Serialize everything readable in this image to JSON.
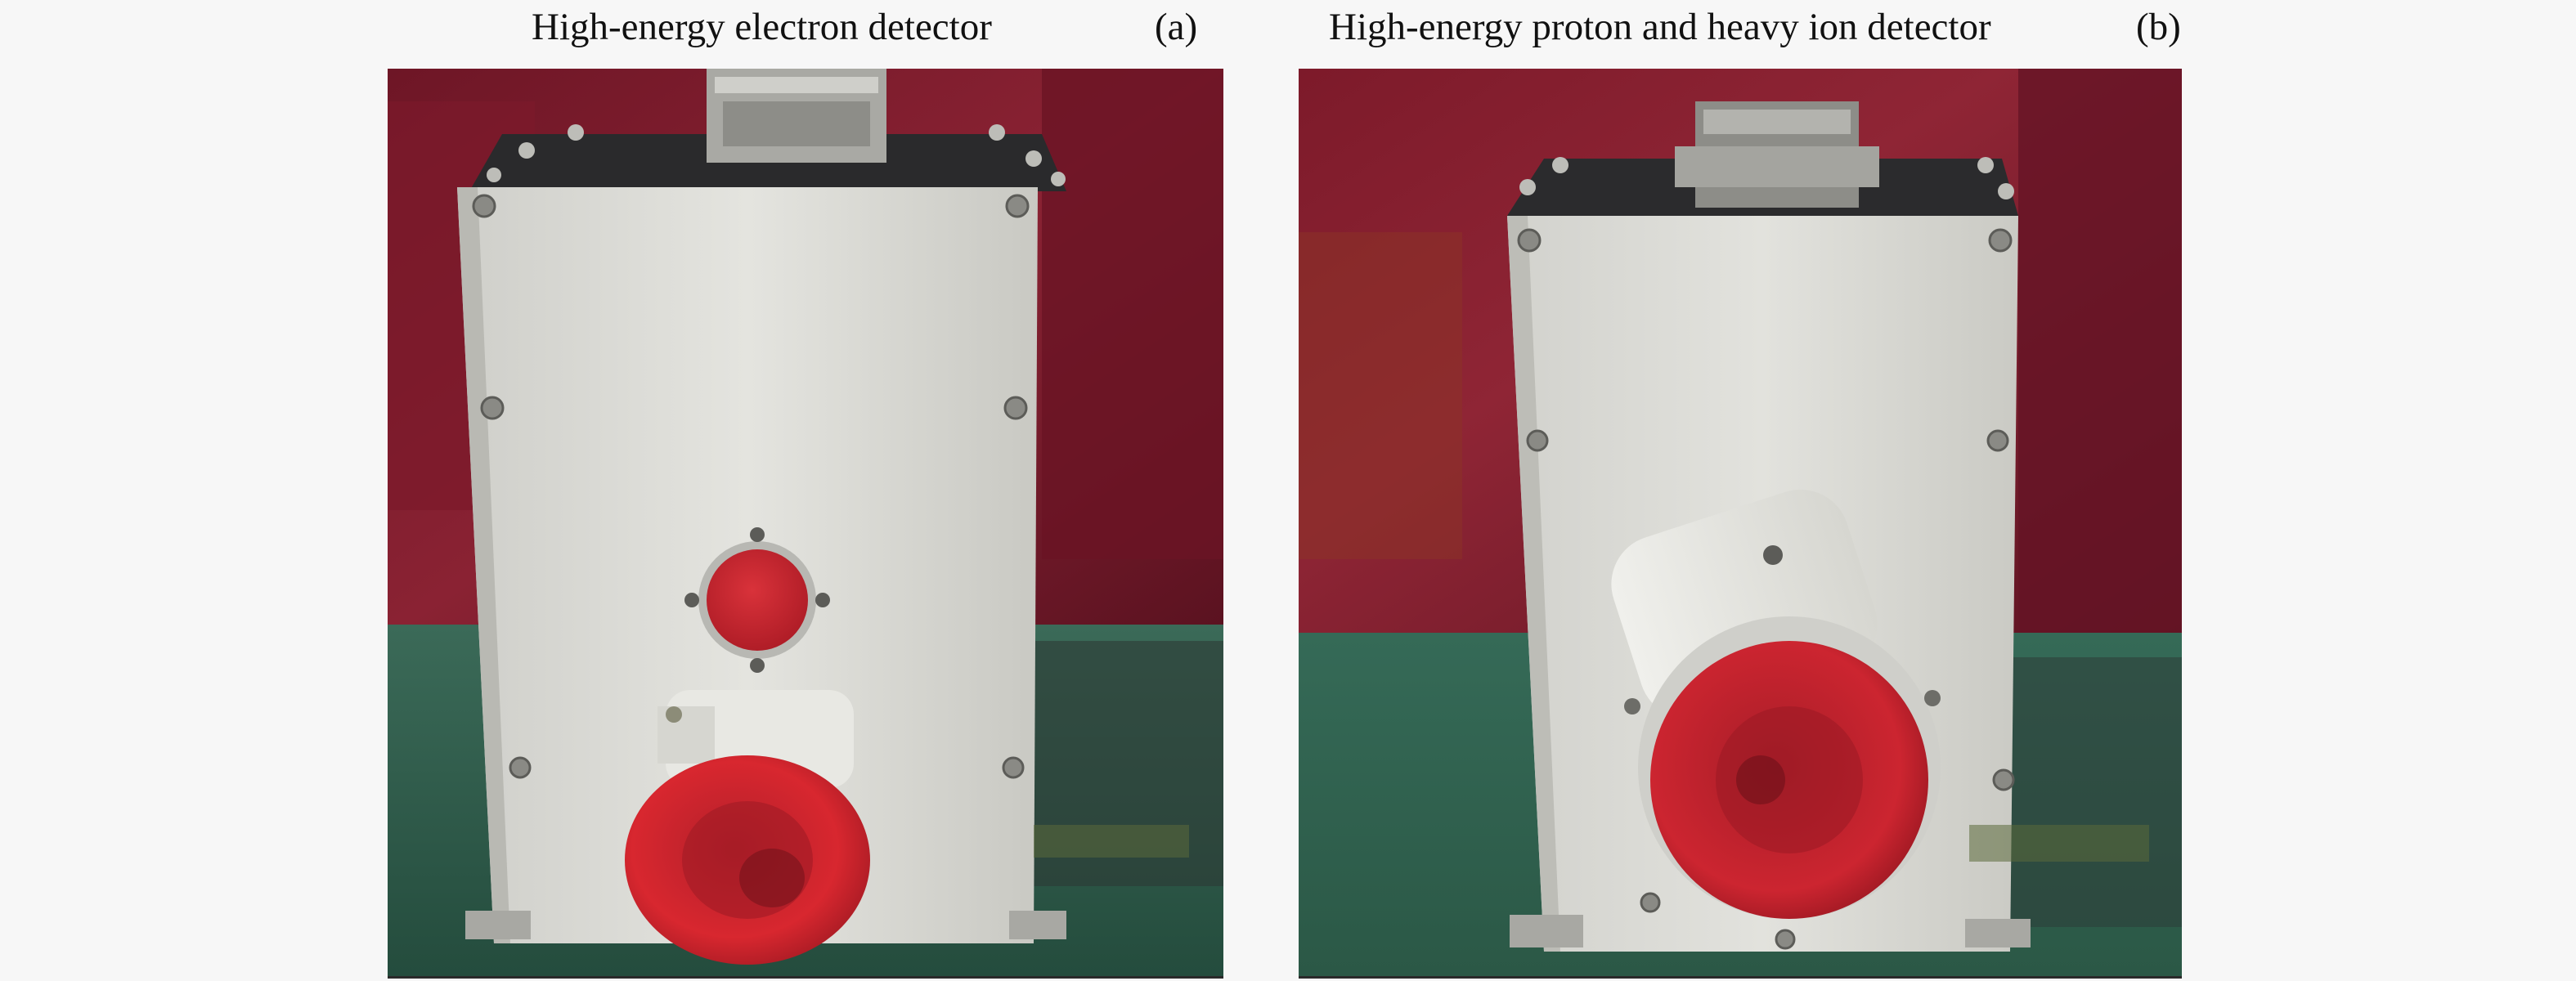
{
  "figures": [
    {
      "title": "High-energy electron detector",
      "label": "(a)",
      "subject": "high-energy-electron-detector-photo"
    },
    {
      "title": "High-energy proton and heavy ion detector",
      "label": "(b)",
      "subject": "high-energy-proton-heavy-ion-detector-photo"
    }
  ],
  "colors": {
    "background": "#f7f7f7",
    "backdrop_red": "#7a1a2a",
    "table_green": "#2f5f4c",
    "housing_silver": "#d9d9d4",
    "cap_red": "#c8232b"
  }
}
